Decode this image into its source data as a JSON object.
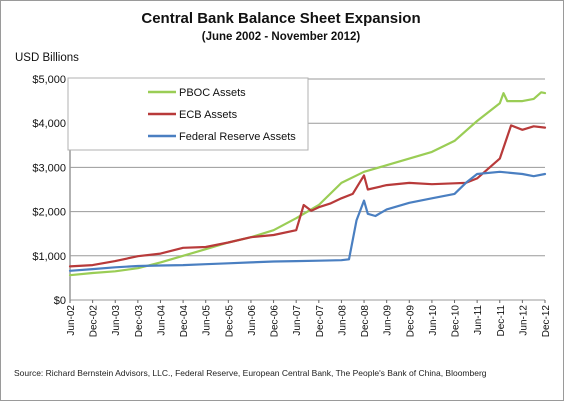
{
  "chart_data": {
    "type": "line",
    "title": "Central Bank Balance Sheet Expansion",
    "subtitle": "(June 2002 - November 2012)",
    "ylabel": "USD Billions",
    "xlabel": "",
    "ylim": [
      0,
      5000
    ],
    "yticks": [
      {
        "value": 0,
        "label": "$0"
      },
      {
        "value": 1000,
        "label": "$1,000"
      },
      {
        "value": 2000,
        "label": "$2,000"
      },
      {
        "value": 3000,
        "label": "$3,000"
      },
      {
        "value": 4000,
        "label": "$4,000"
      },
      {
        "value": 5000,
        "label": "$5,000"
      }
    ],
    "x_domain": [
      "2002-06",
      "2012-12"
    ],
    "x_tick_labels": [
      "Jun-02",
      "Dec-02",
      "Jun-03",
      "Dec-03",
      "Jun-04",
      "Dec-04",
      "Jun-05",
      "Dec-05",
      "Jun-06",
      "Dec-06",
      "Jun-07",
      "Dec-07",
      "Jun-08",
      "Dec-08",
      "Jun-09",
      "Dec-09",
      "Jun-10",
      "Dec-10",
      "Jun-11",
      "Dec-11",
      "Jun-12",
      "Dec-12"
    ],
    "grid": "horizontal",
    "legend_position": "top-left",
    "series": [
      {
        "name": "PBOC Assets",
        "color": "#9ACD55",
        "points": [
          [
            "2002-06",
            560
          ],
          [
            "2002-12",
            610
          ],
          [
            "2003-06",
            650
          ],
          [
            "2003-12",
            720
          ],
          [
            "2004-06",
            850
          ],
          [
            "2004-12",
            1000
          ],
          [
            "2005-06",
            1150
          ],
          [
            "2005-12",
            1300
          ],
          [
            "2006-06",
            1420
          ],
          [
            "2006-12",
            1580
          ],
          [
            "2007-06",
            1850
          ],
          [
            "2007-12",
            2150
          ],
          [
            "2008-06",
            2650
          ],
          [
            "2008-12",
            2900
          ],
          [
            "2009-06",
            3050
          ],
          [
            "2009-12",
            3200
          ],
          [
            "2010-06",
            3350
          ],
          [
            "2010-12",
            3600
          ],
          [
            "2011-06",
            4050
          ],
          [
            "2011-12",
            4450
          ],
          [
            "2012-01",
            4680
          ],
          [
            "2012-02",
            4500
          ],
          [
            "2012-06",
            4500
          ],
          [
            "2012-09",
            4550
          ],
          [
            "2012-11",
            4700
          ],
          [
            "2012-12",
            4680
          ]
        ]
      },
      {
        "name": "ECB Assets",
        "color": "#B83A3A",
        "points": [
          [
            "2002-06",
            760
          ],
          [
            "2002-12",
            790
          ],
          [
            "2003-06",
            880
          ],
          [
            "2003-12",
            990
          ],
          [
            "2004-06",
            1050
          ],
          [
            "2004-12",
            1180
          ],
          [
            "2005-06",
            1200
          ],
          [
            "2005-12",
            1300
          ],
          [
            "2006-06",
            1420
          ],
          [
            "2006-12",
            1470
          ],
          [
            "2007-06",
            1580
          ],
          [
            "2007-08",
            2150
          ],
          [
            "2007-10",
            2020
          ],
          [
            "2007-12",
            2100
          ],
          [
            "2008-03",
            2180
          ],
          [
            "2008-06",
            2300
          ],
          [
            "2008-09",
            2400
          ],
          [
            "2008-12",
            2820
          ],
          [
            "2009-01",
            2500
          ],
          [
            "2009-06",
            2600
          ],
          [
            "2009-12",
            2650
          ],
          [
            "2010-06",
            2620
          ],
          [
            "2010-12",
            2640
          ],
          [
            "2011-03",
            2650
          ],
          [
            "2011-06",
            2750
          ],
          [
            "2011-12",
            3200
          ],
          [
            "2012-03",
            3950
          ],
          [
            "2012-06",
            3850
          ],
          [
            "2012-09",
            3930
          ],
          [
            "2012-12",
            3900
          ]
        ]
      },
      {
        "name": "Federal Reserve Assets",
        "color": "#4A7FC1",
        "points": [
          [
            "2002-06",
            660
          ],
          [
            "2002-12",
            700
          ],
          [
            "2003-06",
            740
          ],
          [
            "2003-12",
            770
          ],
          [
            "2004-06",
            780
          ],
          [
            "2004-12",
            790
          ],
          [
            "2005-06",
            810
          ],
          [
            "2005-12",
            830
          ],
          [
            "2006-06",
            850
          ],
          [
            "2006-12",
            870
          ],
          [
            "2007-06",
            880
          ],
          [
            "2007-12",
            890
          ],
          [
            "2008-06",
            900
          ],
          [
            "2008-08",
            920
          ],
          [
            "2008-10",
            1800
          ],
          [
            "2008-12",
            2250
          ],
          [
            "2009-01",
            1950
          ],
          [
            "2009-03",
            1900
          ],
          [
            "2009-06",
            2050
          ],
          [
            "2009-12",
            2200
          ],
          [
            "2010-06",
            2300
          ],
          [
            "2010-12",
            2400
          ],
          [
            "2011-03",
            2650
          ],
          [
            "2011-06",
            2850
          ],
          [
            "2011-12",
            2900
          ],
          [
            "2012-06",
            2850
          ],
          [
            "2012-09",
            2800
          ],
          [
            "2012-12",
            2850
          ]
        ]
      }
    ]
  },
  "source": "Source: Richard Bernstein Advisors, LLC., Federal Reserve, European Central Bank, The People's Bank of China, Bloomberg"
}
